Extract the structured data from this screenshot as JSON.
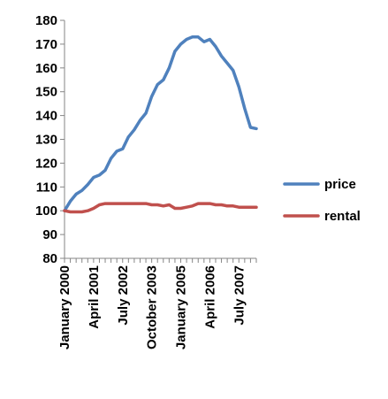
{
  "chart_data": {
    "type": "line",
    "title": "",
    "xlabel": "",
    "ylabel": "",
    "ylim": [
      80,
      180
    ],
    "yticks": [
      80,
      90,
      100,
      110,
      120,
      130,
      140,
      150,
      160,
      170,
      180
    ],
    "grid": false,
    "legend_position": "right",
    "x": [
      "2000-01",
      "2000-04",
      "2000-07",
      "2000-10",
      "2001-01",
      "2001-04",
      "2001-07",
      "2001-10",
      "2002-01",
      "2002-04",
      "2002-07",
      "2002-10",
      "2003-01",
      "2003-04",
      "2003-07",
      "2003-10",
      "2004-01",
      "2004-04",
      "2004-07",
      "2004-10",
      "2005-01",
      "2005-04",
      "2005-07",
      "2005-10",
      "2006-01",
      "2006-04",
      "2006-07",
      "2006-10",
      "2007-01",
      "2007-04",
      "2007-07",
      "2007-10",
      "2008-01",
      "2008-04"
    ],
    "x_tick_labels": [
      "January 2000",
      "April 2001",
      "July 2002",
      "October 2003",
      "January 2005",
      "April 2006",
      "July 2007"
    ],
    "x_tick_dates": [
      "2000-01",
      "2001-04",
      "2002-07",
      "2003-10",
      "2005-01",
      "2006-04",
      "2007-07"
    ],
    "series": [
      {
        "name": "price",
        "color": "#4f81bd",
        "values": [
          100,
          104,
          107,
          108.5,
          111,
          114,
          115,
          117,
          122,
          125,
          126,
          131,
          134,
          138,
          141,
          148,
          153,
          155,
          160,
          167,
          170,
          172,
          173,
          173,
          171,
          172,
          169,
          165,
          162,
          159,
          152,
          143,
          135,
          134.5
        ]
      },
      {
        "name": "rental",
        "color": "#c0504d",
        "values": [
          100,
          99.5,
          99.5,
          99.5,
          100,
          101,
          102.5,
          103,
          103,
          103,
          103,
          103,
          103,
          103,
          103,
          102.5,
          102.5,
          102,
          102.5,
          101,
          101,
          101.5,
          102,
          103,
          103,
          103,
          102.5,
          102.5,
          102,
          102,
          101.5,
          101.5,
          101.5,
          101.5
        ]
      }
    ]
  }
}
